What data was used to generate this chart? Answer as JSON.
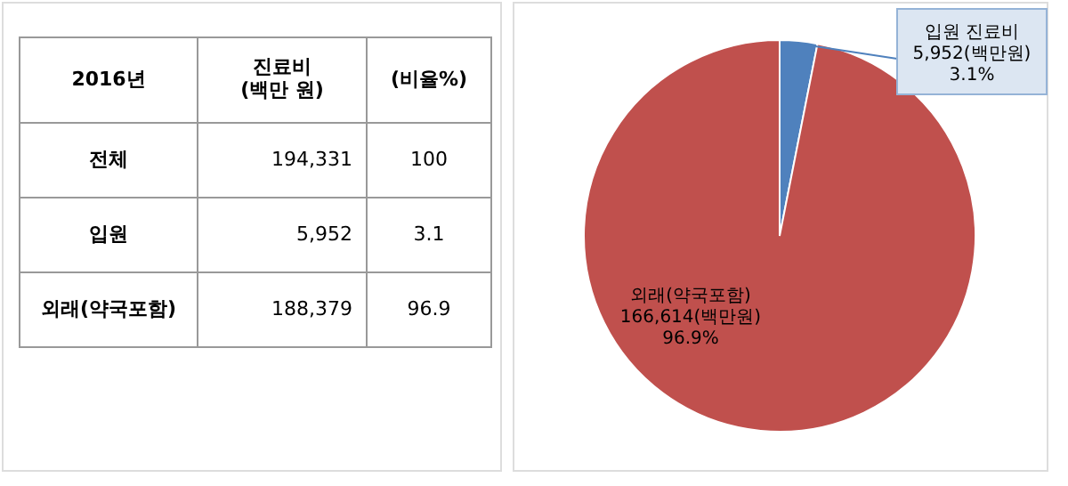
{
  "chart_data": [
    {
      "type": "other",
      "annotations": [
        "2016년",
        "진료비\n(백만 원)",
        "(비율%)",
        "전체",
        "194,331",
        "100",
        "입원",
        "5,952",
        "3.1",
        "외래(약국포함)",
        "188,379",
        "96.9"
      ]
    },
    {
      "type": "pie",
      "categories": [
        "입원 진료비",
        "외래(약국포함)"
      ],
      "values": [
        3.1,
        96.9
      ],
      "colors": [
        "#4f81bd",
        "#c0504d"
      ],
      "value_labels": [
        "5,952(백만원)\n3.1%",
        "166,614(백만원)\n96.9%"
      ],
      "legend": false
    }
  ]
}
